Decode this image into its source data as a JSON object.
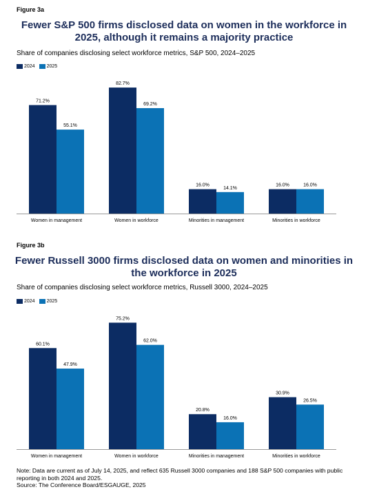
{
  "colors": {
    "series_2024": "#0c2c63",
    "series_2025": "#0b72b5",
    "title": "#1c2d5a",
    "axis": "#999999"
  },
  "figures": [
    {
      "label": "Figure 3a",
      "title": "Fewer S&P 500 firms disclosed data on women in the workforce in 2025, although it remains a majority practice",
      "subtitle": "Share of companies disclosing select workforce metrics, S&P 500, 2024–2025",
      "legend": [
        "2024",
        "2025"
      ]
    },
    {
      "label": "Figure 3b",
      "title": "Fewer Russell 3000 firms disclosed data on women and minorities in the workforce in 2025",
      "subtitle": "Share of companies disclosing select workforce metrics, Russell 3000, 2024–2025",
      "legend": [
        "2024",
        "2025"
      ]
    }
  ],
  "chart_data": [
    {
      "type": "bar",
      "title": "Fewer S&P 500 firms disclosed data on women in the workforce in 2025, although it remains a majority practice",
      "subtitle": "Share of companies disclosing select workforce metrics, S&P 500, 2024–2025",
      "categories": [
        "Women in management",
        "Women in workforce",
        "Minorities in management",
        "Minorities in workforce"
      ],
      "series": [
        {
          "name": "2024",
          "values": [
            71.2,
            82.7,
            16.0,
            16.0
          ],
          "labels": [
            "71.2%",
            "82.7%",
            "16.0%",
            "16.0%"
          ]
        },
        {
          "name": "2025",
          "values": [
            55.1,
            69.2,
            14.1,
            16.0
          ],
          "labels": [
            "55.1%",
            "69.2%",
            "14.1%",
            "16.0%"
          ]
        }
      ],
      "ylim": [
        0,
        85
      ],
      "grid": false,
      "legend": "top-left"
    },
    {
      "type": "bar",
      "title": "Fewer Russell 3000 firms disclosed data on women and minorities in the workforce in 2025",
      "subtitle": "Share of companies disclosing select workforce metrics, Russell 3000, 2024–2025",
      "categories": [
        "Women in management",
        "Women in workforce",
        "Minorities in management",
        "Minorities in workforce"
      ],
      "series": [
        {
          "name": "2024",
          "values": [
            60.1,
            75.2,
            20.8,
            30.9
          ],
          "labels": [
            "60.1%",
            "75.2%",
            "20.8%",
            "30.9%"
          ]
        },
        {
          "name": "2025",
          "values": [
            47.9,
            62.0,
            16.0,
            26.5
          ],
          "labels": [
            "47.9%",
            "62.0%",
            "16.0%",
            "26.5%"
          ]
        }
      ],
      "ylim": [
        0,
        77
      ],
      "grid": false,
      "legend": "top-left"
    }
  ],
  "note": {
    "line1": "Note: Data are current as of July 14, 2025, and reflect 635 Russell 3000 companies and 188 S&P 500 companies with public reporting in both 2024 and 2025.",
    "line2": "Source: The Conference Board/ESGAUGE, 2025"
  }
}
